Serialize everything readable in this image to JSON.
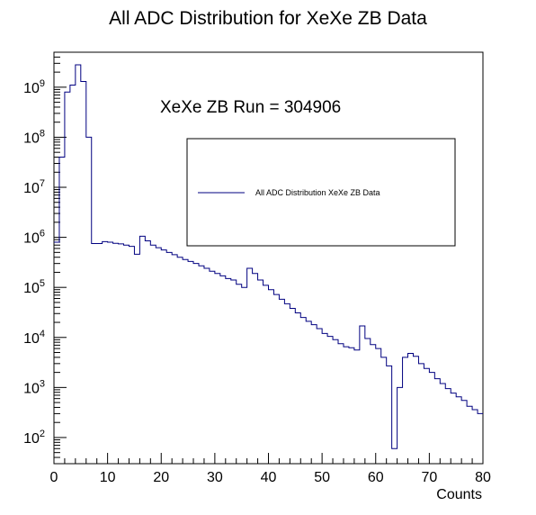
{
  "chart_data": {
    "type": "histogram-step",
    "title": "All ADC Distribution for XeXe ZB Data",
    "xlabel": "Counts",
    "ylabel": "",
    "xlim": [
      0,
      80
    ],
    "ylim": [
      30,
      5000000000
    ],
    "yscale": "log",
    "grid": false,
    "legend_position": "upper-right",
    "annotation": "XeXe ZB Run = 304906",
    "x_ticks": [
      0,
      10,
      20,
      30,
      40,
      50,
      60,
      70,
      80
    ],
    "y_ticks": [
      {
        "base": "10",
        "exp": "2",
        "value": 100
      },
      {
        "base": "10",
        "exp": "3",
        "value": 1000
      },
      {
        "base": "10",
        "exp": "4",
        "value": 10000
      },
      {
        "base": "10",
        "exp": "5",
        "value": 100000
      },
      {
        "base": "10",
        "exp": "6",
        "value": 1000000
      },
      {
        "base": "10",
        "exp": "7",
        "value": 10000000
      },
      {
        "base": "10",
        "exp": "8",
        "value": 100000000
      },
      {
        "base": "10",
        "exp": "9",
        "value": 1000000000
      }
    ],
    "series": [
      {
        "name": "All ADC Distribution XeXe ZB Data",
        "color": "#000080",
        "bin_width": 1,
        "x": [
          0,
          1,
          2,
          3,
          4,
          5,
          6,
          7,
          8,
          9,
          10,
          11,
          12,
          13,
          14,
          15,
          16,
          17,
          18,
          19,
          20,
          21,
          22,
          23,
          24,
          25,
          26,
          27,
          28,
          29,
          30,
          31,
          32,
          33,
          34,
          35,
          36,
          37,
          38,
          39,
          40,
          41,
          42,
          43,
          44,
          45,
          46,
          47,
          48,
          49,
          50,
          51,
          52,
          53,
          54,
          55,
          56,
          57,
          58,
          59,
          60,
          61,
          62,
          63,
          64,
          65,
          66,
          67,
          68,
          69,
          70,
          71,
          72,
          73,
          74,
          75,
          76,
          77,
          78,
          79
        ],
        "values": [
          800000,
          40000000,
          800000000,
          1100000000,
          2800000000,
          1300000000,
          100000000,
          750000,
          750000,
          820000,
          800000,
          760000,
          740000,
          700000,
          660000,
          460000,
          1050000,
          850000,
          700000,
          620000,
          560000,
          500000,
          450000,
          400000,
          360000,
          330000,
          300000,
          270000,
          240000,
          210000,
          190000,
          170000,
          150000,
          140000,
          115000,
          100000,
          240000,
          190000,
          140000,
          110000,
          90000,
          72000,
          58000,
          47000,
          38000,
          31000,
          25000,
          21000,
          18000,
          15000,
          12000,
          10500,
          9000,
          7500,
          6500,
          6200,
          5600,
          17000,
          9500,
          7200,
          6000,
          4000,
          2700,
          60,
          1000,
          4000,
          4800,
          4200,
          3000,
          2400,
          2000,
          1500,
          1200,
          950,
          770,
          650,
          550,
          420,
          360,
          300
        ]
      }
    ]
  }
}
